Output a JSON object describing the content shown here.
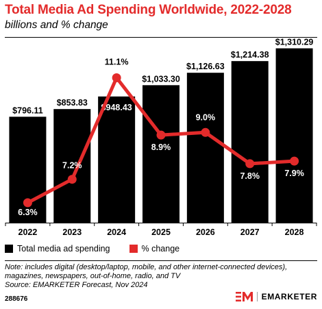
{
  "header": {
    "title": "Total Media Ad Spending Worldwide, 2022-2028",
    "subtitle": "billions and % change"
  },
  "chart_data": {
    "type": "bar",
    "categories": [
      "2022",
      "2023",
      "2024",
      "2025",
      "2026",
      "2027",
      "2028"
    ],
    "series": [
      {
        "name": "Total media ad spending",
        "type": "bar",
        "color": "#000000",
        "values": [
          796.11,
          853.83,
          948.43,
          1033.3,
          1126.63,
          1214.38,
          1310.29
        ],
        "labels": [
          "$796.11",
          "$853.83",
          "$948.43",
          "$1,033.30",
          "$1,126.63",
          "$1,214.38",
          "$1,310.29"
        ]
      },
      {
        "name": "% change",
        "type": "line",
        "color": "#e32b2b",
        "values": [
          6.3,
          7.2,
          11.1,
          8.9,
          9.0,
          7.8,
          7.9
        ],
        "labels": [
          "6.3%",
          "7.2%",
          "11.1%",
          "8.9%",
          "9.0%",
          "7.8%",
          "7.9%"
        ]
      }
    ],
    "bar_ylim": [
      0,
      1380
    ],
    "line_ylim": [
      5.85,
      11.85
    ],
    "grid": false,
    "legend_position": "bottom-left"
  },
  "legend": {
    "items": [
      {
        "label": "Total media ad spending",
        "color": "#000000"
      },
      {
        "label": "% change",
        "color": "#e32b2b"
      }
    ]
  },
  "footer": {
    "note_lines": [
      "Note: includes digital (desktop/laptop, mobile, and other internet-connected devices),",
      "magazines, newspapers, out-of-home, radio, and TV",
      "Source: EMARKETER Forecast, Nov 2024"
    ],
    "chart_id": "288676",
    "brand": "EMARKETER",
    "brand_color": "#e32b2b"
  }
}
